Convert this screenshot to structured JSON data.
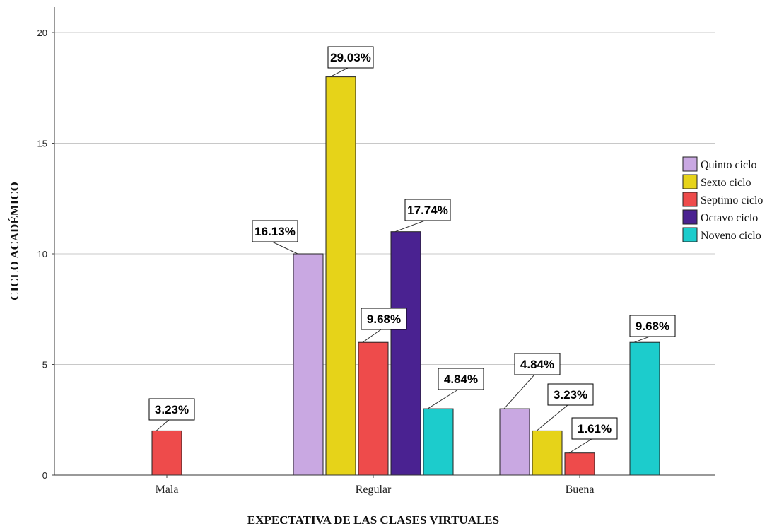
{
  "chart_data": {
    "type": "bar",
    "title": "",
    "xlabel": "EXPECTATIVA DE LAS CLASES VIRTUALES",
    "ylabel": "CICLO ACADÉMICO",
    "ylim": [
      0,
      20
    ],
    "yticks": [
      "0",
      "5",
      "10",
      "15",
      "20"
    ],
    "grid": true,
    "legend_position": "right",
    "categories": [
      "Mala",
      "Regular",
      "Buena"
    ],
    "series": [
      {
        "name": "Quinto ciclo",
        "color": "#c9a8e2",
        "values": [
          null,
          10,
          3
        ],
        "labels": [
          "",
          "16.13%",
          "4.84%"
        ]
      },
      {
        "name": "Sexto ciclo",
        "color": "#e6d319",
        "values": [
          null,
          18,
          2
        ],
        "labels": [
          "",
          "29.03%",
          "3.23%"
        ]
      },
      {
        "name": "Septimo ciclo",
        "color": "#ee4b4b",
        "values": [
          2,
          6,
          1
        ],
        "labels": [
          "3.23%",
          "9.68%",
          "1.61%"
        ]
      },
      {
        "name": "Octavo ciclo",
        "color": "#4a2291",
        "values": [
          null,
          11,
          null
        ],
        "labels": [
          "",
          "17.74%",
          ""
        ]
      },
      {
        "name": "Noveno ciclo",
        "color": "#1ccccc",
        "values": [
          null,
          3,
          6
        ],
        "labels": [
          "",
          "4.84%",
          "9.68%"
        ]
      }
    ]
  }
}
